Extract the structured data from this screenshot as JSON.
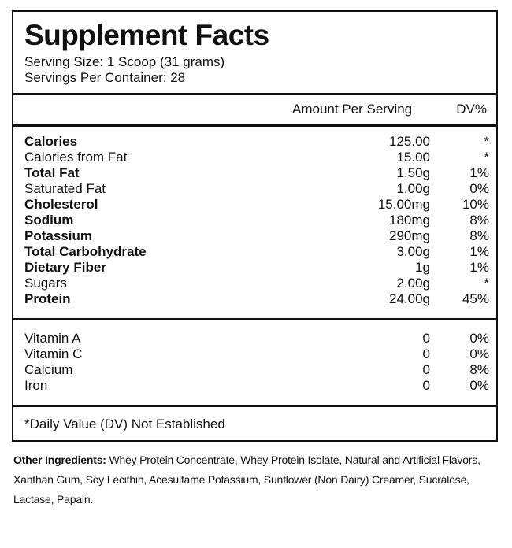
{
  "header": {
    "title": "Supplement Facts",
    "serving_size": "Serving Size: 1 Scoop (31 grams)",
    "servings_per_container": "Servings Per Container: 28"
  },
  "columns": {
    "amount": "Amount Per Serving",
    "dv": "DV%"
  },
  "nutrients": [
    {
      "label": "Calories",
      "amount": "125.00",
      "dv": "*",
      "bold": true
    },
    {
      "label": "Calories from Fat",
      "amount": "15.00",
      "dv": "*",
      "bold": false
    },
    {
      "label": "Total Fat",
      "amount": "1.50g",
      "dv": "1%",
      "bold": true
    },
    {
      "label": "Saturated Fat",
      "amount": "1.00g",
      "dv": "0%",
      "bold": false
    },
    {
      "label": "Cholesterol",
      "amount": "15.00mg",
      "dv": "10%",
      "bold": true
    },
    {
      "label": "Sodium",
      "amount": "180mg",
      "dv": "8%",
      "bold": true
    },
    {
      "label": "Potassium",
      "amount": "290mg",
      "dv": "8%",
      "bold": true
    },
    {
      "label": "Total Carbohydrate",
      "amount": "3.00g",
      "dv": "1%",
      "bold": true
    },
    {
      "label": "Dietary Fiber",
      "amount": "1g",
      "dv": "1%",
      "bold": true
    },
    {
      "label": "Sugars",
      "amount": "2.00g",
      "dv": "*",
      "bold": false
    },
    {
      "label": "Protein",
      "amount": "24.00g",
      "dv": "45%",
      "bold": true
    }
  ],
  "vitamins": [
    {
      "label": "Vitamin A",
      "amount": "0",
      "dv": "0%"
    },
    {
      "label": "Vitamin C",
      "amount": "0",
      "dv": "0%"
    },
    {
      "label": "Calcium",
      "amount": "0",
      "dv": "8%"
    },
    {
      "label": "Iron",
      "amount": "0",
      "dv": "0%"
    }
  ],
  "footnote": "*Daily Value (DV) Not Established",
  "other_ingredients": {
    "heading": "Other Ingredients:",
    "text": "Whey Protein Concentrate, Whey Protein Isolate, Natural and Artificial Flavors, Xanthan Gum, Soy Lecithin, Acesulfame Potassium, Sunflower (Non Dairy) Creamer, Sucralose, Lactase, Papain."
  }
}
